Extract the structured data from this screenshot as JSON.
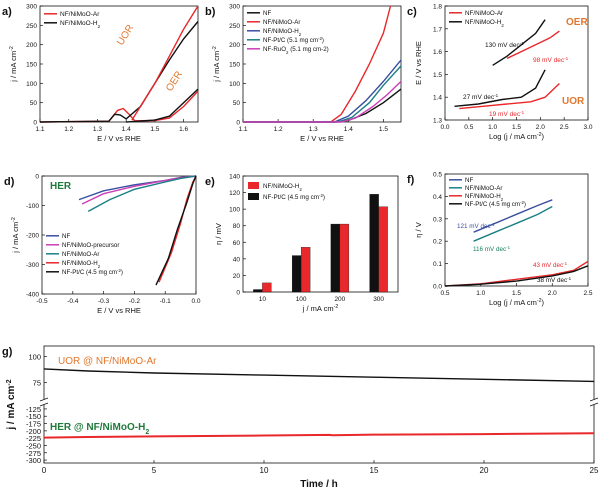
{
  "colors": {
    "red": "#e8282b",
    "black": "#111111",
    "blue": "#3a4fa0",
    "teal": "#1a7f86",
    "magenta": "#cc3fb6",
    "orange": "#e0782f",
    "green": "#1f7a3a",
    "darkgreen": "#18805e"
  },
  "chart_data": [
    {
      "panel": "a)",
      "type": "line",
      "xlabel": "E / V vs RHE",
      "ylabel": "j / mA cm-2",
      "xlim": [
        1.1,
        1.65
      ],
      "ylim": [
        0,
        300
      ],
      "xticks": [
        "1.1",
        "1.2",
        "1.3",
        "1.4",
        "1.5",
        "1.6"
      ],
      "yticks": [
        "0",
        "50",
        "100",
        "150",
        "200",
        "250",
        "300"
      ],
      "legend": [
        "NF/NiMoO-Ar",
        "NF/NiMoO-H2"
      ],
      "annotations": [
        "UOR",
        "OER"
      ],
      "series": [
        {
          "name": "NF/NiMoO-Ar",
          "color": "red",
          "x": [
            1.1,
            1.34,
            1.37,
            1.39,
            1.41,
            1.43,
            1.5,
            1.55,
            1.6,
            1.65
          ],
          "y": [
            0,
            2,
            30,
            35,
            20,
            3,
            4,
            10,
            40,
            80
          ]
        },
        {
          "name": "NF/NiMoO-H2",
          "color": "black",
          "x": [
            1.1,
            1.34,
            1.36,
            1.38,
            1.4,
            1.45,
            1.5,
            1.55,
            1.6,
            1.65
          ],
          "y": [
            0,
            2,
            20,
            18,
            8,
            40,
            100,
            160,
            215,
            260
          ]
        },
        {
          "name": "UOR-red",
          "color": "red",
          "x": [
            1.42,
            1.5,
            1.55,
            1.6,
            1.65
          ],
          "y": [
            5,
            100,
            170,
            240,
            300
          ]
        },
        {
          "name": "OER-black",
          "color": "black",
          "x": [
            1.4,
            1.5,
            1.55,
            1.6,
            1.65
          ],
          "y": [
            0,
            5,
            15,
            50,
            85
          ]
        }
      ]
    },
    {
      "panel": "b)",
      "type": "line",
      "xlabel": "E / V vs RHE",
      "ylabel": "j / mA cm-2",
      "xlim": [
        1.1,
        1.55
      ],
      "ylim": [
        0,
        300
      ],
      "xticks": [
        "1.1",
        "1.2",
        "1.3",
        "1.4",
        "1.5"
      ],
      "yticks": [
        "0",
        "50",
        "100",
        "150",
        "200",
        "250",
        "300"
      ],
      "legend": [
        "NF",
        "NF/NiMoO-Ar",
        "NF/NiMoO-H2",
        "NF-Pt/C (5.1 mg cm-2)",
        "NF-RuO2 (5.1 mg cm-2)"
      ],
      "series": [
        {
          "name": "NF",
          "color": "black",
          "x": [
            1.1,
            1.36,
            1.4,
            1.45,
            1.5,
            1.55
          ],
          "y": [
            0,
            0,
            4,
            22,
            50,
            85
          ]
        },
        {
          "name": "NF/NiMoO-Ar",
          "color": "red",
          "x": [
            1.1,
            1.35,
            1.38,
            1.42,
            1.46,
            1.5,
            1.52
          ],
          "y": [
            0,
            0,
            20,
            80,
            150,
            230,
            300
          ]
        },
        {
          "name": "NF/NiMoO-H2",
          "color": "blue",
          "x": [
            1.1,
            1.36,
            1.4,
            1.45,
            1.5,
            1.55
          ],
          "y": [
            0,
            0,
            15,
            55,
            105,
            160
          ]
        },
        {
          "name": "NF-Pt/C (5.1 mg cm-2)",
          "color": "teal",
          "x": [
            1.1,
            1.37,
            1.41,
            1.46,
            1.5,
            1.55
          ],
          "y": [
            0,
            0,
            12,
            50,
            95,
            145
          ]
        },
        {
          "name": "NF-RuO2 (5.1 mg cm-2)",
          "color": "magenta",
          "x": [
            1.1,
            1.38,
            1.42,
            1.47,
            1.51,
            1.55
          ],
          "y": [
            0,
            0,
            10,
            40,
            70,
            105
          ]
        }
      ]
    },
    {
      "panel": "c)",
      "type": "line",
      "xlabel": "Log (j / mA cm-2)",
      "ylabel": "E / V vs RHE",
      "xlim": [
        0.0,
        3.0
      ],
      "ylim": [
        1.3,
        1.8
      ],
      "xticks": [
        "0.0",
        "0.5",
        "1.0",
        "1.5",
        "2.0",
        "2.5",
        "3.0"
      ],
      "yticks": [
        "1.3",
        "1.4",
        "1.5",
        "1.6",
        "1.7",
        "1.8"
      ],
      "legend": [
        "NF/NiMoO-Ar",
        "NF/NiMoO-H2"
      ],
      "annotations": [
        "OER",
        "UOR",
        "130 mV dec-1",
        "98 mV dec-1",
        "27 mV dec-1",
        "19 mV dec-1"
      ],
      "series": [
        {
          "name": "NF/NiMoO-Ar OER",
          "color": "red",
          "x": [
            1.3,
            1.6,
            1.9,
            2.2,
            2.4
          ],
          "y": [
            1.57,
            1.6,
            1.63,
            1.66,
            1.69
          ]
        },
        {
          "name": "NF/NiMoO-H2 OER",
          "color": "black",
          "x": [
            1.0,
            1.3,
            1.6,
            1.9,
            2.1
          ],
          "y": [
            1.54,
            1.58,
            1.63,
            1.68,
            1.74
          ]
        },
        {
          "name": "NF/NiMoO-Ar UOR",
          "color": "red",
          "x": [
            0.3,
            0.8,
            1.3,
            1.8,
            2.1,
            2.4
          ],
          "y": [
            1.35,
            1.36,
            1.37,
            1.38,
            1.4,
            1.46
          ]
        },
        {
          "name": "NF/NiMoO-H2 UOR",
          "color": "black",
          "x": [
            0.2,
            0.7,
            1.2,
            1.6,
            1.9,
            2.1
          ],
          "y": [
            1.36,
            1.37,
            1.39,
            1.4,
            1.44,
            1.52
          ]
        }
      ]
    },
    {
      "panel": "d)",
      "type": "line",
      "xlabel": "E / V vs RHE",
      "ylabel": "j / mA cm-2",
      "xlim": [
        -0.5,
        0.0
      ],
      "ylim": [
        -400,
        0
      ],
      "xticks": [
        "-0.5",
        "-0.4",
        "-0.3",
        "-0.2",
        "-0.1",
        "0.0"
      ],
      "yticks": [
        "-400",
        "-300",
        "-200",
        "-100",
        "0"
      ],
      "annotations": [
        "HER"
      ],
      "legend": [
        "NF",
        "NF/NiMoO-precursor",
        "NF/NiMoO-Ar",
        "NF/NiMoO-H2",
        "NF-Pt/C (4.5 mg cm-2)"
      ],
      "series": [
        {
          "name": "NF",
          "color": "blue",
          "x": [
            -0.38,
            -0.3,
            -0.2,
            -0.1,
            -0.05,
            0.0
          ],
          "y": [
            -80,
            -50,
            -30,
            -15,
            -5,
            0
          ]
        },
        {
          "name": "NF/NiMoO-precursor",
          "color": "magenta",
          "x": [
            -0.37,
            -0.3,
            -0.2,
            -0.1,
            -0.05,
            0.0
          ],
          "y": [
            -95,
            -60,
            -35,
            -15,
            -6,
            0
          ]
        },
        {
          "name": "NF/NiMoO-Ar",
          "color": "teal",
          "x": [
            -0.35,
            -0.28,
            -0.2,
            -0.1,
            -0.05,
            0.0
          ],
          "y": [
            -120,
            -80,
            -45,
            -20,
            -8,
            0
          ]
        },
        {
          "name": "NF/NiMoO-H2",
          "color": "red",
          "x": [
            -0.12,
            -0.08,
            -0.05,
            -0.03,
            -0.01,
            0.0
          ],
          "y": [
            -360,
            -260,
            -160,
            -80,
            -20,
            0
          ]
        },
        {
          "name": "NF-Pt/C (4.5 mg cm-2)",
          "color": "black",
          "x": [
            -0.13,
            -0.09,
            -0.06,
            -0.03,
            -0.01,
            0.0
          ],
          "y": [
            -370,
            -280,
            -180,
            -90,
            -25,
            0
          ]
        }
      ]
    },
    {
      "panel": "e)",
      "type": "bar",
      "xlabel": "j / mA cm-2",
      "ylabel": "η / mV",
      "ylim": [
        0,
        140
      ],
      "yticks": [
        "0",
        "20",
        "40",
        "60",
        "80",
        "100",
        "120",
        "140"
      ],
      "categories": [
        "10",
        "100",
        "200",
        "300"
      ],
      "series": [
        {
          "name": "NF-Pt/C (4.5 mg cm-2)",
          "color": "black",
          "values": [
            3,
            44,
            82,
            118
          ]
        },
        {
          "name": "NF/NiMoO-H2",
          "color": "red",
          "values": [
            11,
            54,
            82,
            103
          ]
        }
      ]
    },
    {
      "panel": "f)",
      "type": "line",
      "xlabel": "Log (j / mA cm-2)",
      "ylabel": "η / V",
      "xlim": [
        0.5,
        2.5
      ],
      "ylim": [
        0.0,
        0.5
      ],
      "xticks": [
        "0.5",
        "1.0",
        "1.5",
        "2.0",
        "2.5"
      ],
      "yticks": [
        "0.0",
        "0.1",
        "0.2",
        "0.3",
        "0.4",
        "0.5"
      ],
      "legend": [
        "NF",
        "NF/NiMoO-Ar",
        "NF/NiMoO-H2",
        "NF-Pt/C (4.5 mg cm-2)"
      ],
      "annotations": [
        "121 mV dec-1",
        "116 mV dec-1",
        "43 mV dec-1",
        "38 mV dec-1"
      ],
      "series": [
        {
          "name": "NF",
          "color": "blue",
          "x": [
            0.9,
            1.2,
            1.5,
            1.8,
            2.0
          ],
          "y": [
            0.24,
            0.28,
            0.32,
            0.36,
            0.385
          ]
        },
        {
          "name": "NF/NiMoO-Ar",
          "color": "teal",
          "x": [
            0.9,
            1.2,
            1.5,
            1.8,
            2.0
          ],
          "y": [
            0.2,
            0.24,
            0.28,
            0.32,
            0.355
          ]
        },
        {
          "name": "NF/NiMoO-H2",
          "color": "red",
          "x": [
            0.5,
            1.0,
            1.5,
            2.0,
            2.3,
            2.5
          ],
          "y": [
            0.0,
            0.01,
            0.03,
            0.05,
            0.07,
            0.11
          ]
        },
        {
          "name": "NF-Pt/C (4.5 mg cm-2)",
          "color": "black",
          "x": [
            0.5,
            1.0,
            1.5,
            2.0,
            2.3,
            2.5
          ],
          "y": [
            0.0,
            0.008,
            0.022,
            0.045,
            0.065,
            0.09
          ]
        }
      ]
    },
    {
      "panel": "g)",
      "type": "line",
      "xlabel": "Time / h",
      "ylabel": "j / mA cm-2",
      "xlim": [
        0,
        25
      ],
      "xticks": [
        "0",
        "5",
        "10",
        "15",
        "20",
        "25"
      ],
      "yticks_top": [
        "100",
        "75"
      ],
      "yticks_bottom": [
        "-125",
        "-150",
        "-175",
        "-200",
        "-225",
        "-250",
        "-275",
        "-300"
      ],
      "annotations": [
        "UOR @ NF/NiMoO-Ar",
        "HER @ NF/NiMoO-H2"
      ],
      "series": [
        {
          "name": "UOR @ NF/NiMoO-Ar",
          "color": "black",
          "x": [
            0,
            2,
            5,
            10,
            15,
            20,
            25
          ],
          "y": [
            88,
            86,
            84,
            82,
            80,
            78,
            76
          ]
        },
        {
          "name": "HER @ NF/NiMoO-H2",
          "color": "red",
          "x": [
            0,
            2,
            5,
            10,
            13,
            13.1,
            15,
            20,
            25
          ],
          "y": [
            -223,
            -221,
            -219,
            -216,
            -214,
            -215,
            -213,
            -211,
            -208
          ]
        }
      ]
    }
  ]
}
